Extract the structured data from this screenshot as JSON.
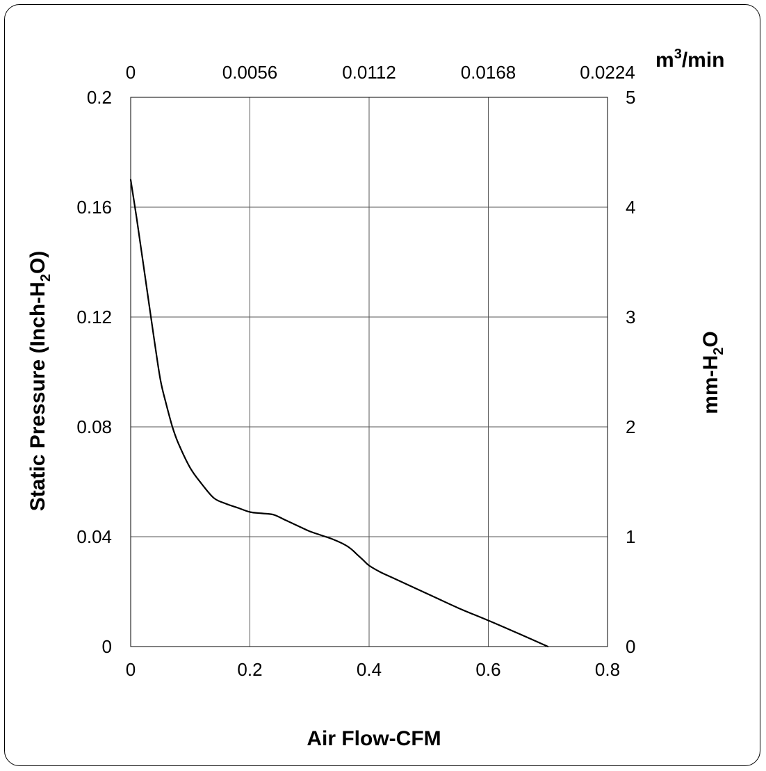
{
  "chart_data": {
    "type": "line",
    "xlabel": "Air Flow-CFM",
    "ylabel_left": {
      "main": "Static Pressure (Inch-H",
      "sub": "2",
      "end": "O)"
    },
    "ylabel_right": {
      "main": "mm-H",
      "sub": "2",
      "end": "O"
    },
    "x2label": {
      "main": "m",
      "sup": "3",
      "end": "/min"
    },
    "xlim": [
      0,
      0.8
    ],
    "ylim": [
      0,
      0.2
    ],
    "y2lim": [
      0,
      5
    ],
    "x_ticks": [
      "0",
      "0.2",
      "0.4",
      "0.6",
      "0.8"
    ],
    "y_ticks": [
      "0",
      "0.04",
      "0.08",
      "0.12",
      "0.16",
      "0.2"
    ],
    "y2_ticks": [
      "0",
      "1",
      "2",
      "3",
      "4",
      "5"
    ],
    "x2_ticks": [
      "0",
      "0.0056",
      "0.0112",
      "0.0168",
      "0.0224"
    ],
    "grid": true,
    "series": [
      {
        "color": "#000000",
        "x": [
          0,
          0.01,
          0.02,
          0.03,
          0.04,
          0.05,
          0.06,
          0.07,
          0.08,
          0.1,
          0.12,
          0.14,
          0.16,
          0.18,
          0.2,
          0.22,
          0.24,
          0.26,
          0.28,
          0.3,
          0.32,
          0.34,
          0.36,
          0.37,
          0.38,
          0.39,
          0.4,
          0.42,
          0.44,
          0.5,
          0.55,
          0.6,
          0.65,
          0.7
        ],
        "y": [
          0.17,
          0.156,
          0.141,
          0.126,
          0.111,
          0.097,
          0.088,
          0.08,
          0.074,
          0.065,
          0.059,
          0.054,
          0.052,
          0.0505,
          0.049,
          0.0485,
          0.048,
          0.046,
          0.044,
          0.042,
          0.0405,
          0.039,
          0.037,
          0.0355,
          0.0335,
          0.0315,
          0.0295,
          0.027,
          0.025,
          0.019,
          0.014,
          0.0095,
          0.0048,
          0.0
        ]
      }
    ]
  }
}
